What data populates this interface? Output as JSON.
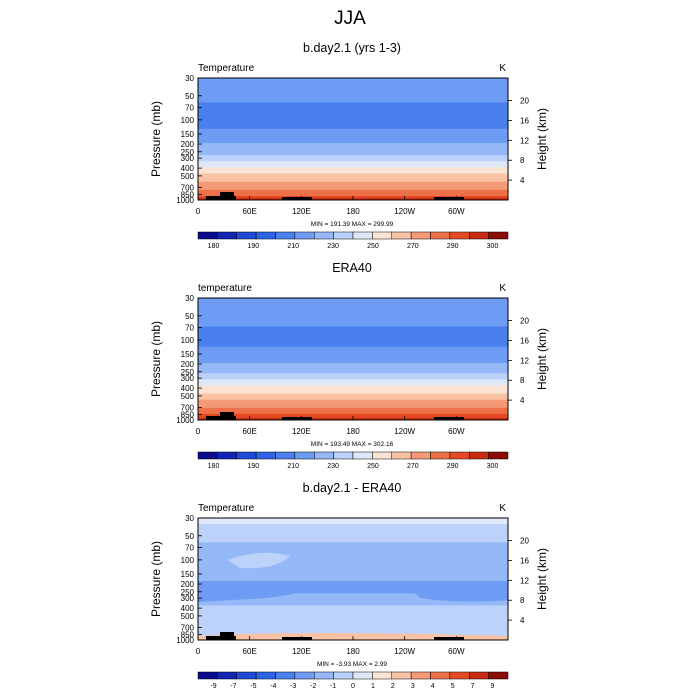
{
  "page_title": "JJA",
  "chart_data": [
    {
      "type": "heatmap",
      "title": "b.day2.1 (yrs 1-3)",
      "variable_label": "Temperature",
      "units": "K",
      "ylabel": "Pressure (mb)",
      "ylabel_right": "Height (km)",
      "y_ticks": [
        "30",
        "50",
        "70",
        "100",
        "150",
        "200",
        "250",
        "300",
        "400",
        "500",
        "700",
        "850",
        "1000"
      ],
      "y_ticks_right": [
        "20",
        "16",
        "12",
        "8",
        "4"
      ],
      "x_ticks": [
        "0",
        "60E",
        "120E",
        "180",
        "120W",
        "60W"
      ],
      "stats": "MIN = 191.39  MAX = 299.99",
      "colorbar_labels": [
        "180",
        "190",
        "210",
        "230",
        "250",
        "270",
        "290",
        "300"
      ],
      "colorbar_levels": [
        175,
        180,
        185,
        190,
        200,
        210,
        220,
        230,
        240,
        250,
        260,
        270,
        280,
        290,
        295,
        300
      ],
      "colorbar_colors": [
        "#0a0a8c",
        "#1424b4",
        "#1e4ad8",
        "#2d64e6",
        "#4a80ee",
        "#6e9cf5",
        "#94b8f8",
        "#bcd2fb",
        "#dfe8f8",
        "#fbe3d4",
        "#f9c2a4",
        "#f59a76",
        "#ee7048",
        "#e34a24",
        "#c92a10",
        "#8c0c04"
      ],
      "pressure_levels": [
        30,
        50,
        70,
        100,
        150,
        200,
        250,
        300,
        400,
        500,
        700,
        850,
        1000
      ],
      "profile": [
        210,
        212,
        208,
        204,
        214,
        220,
        226,
        236,
        252,
        264,
        278,
        288,
        298
      ],
      "max": 299.99
    },
    {
      "type": "heatmap",
      "title": "ERA40",
      "variable_label": "temperature",
      "units": "K",
      "ylabel": "Pressure (mb)",
      "ylabel_right": "Height (km)",
      "y_ticks": [
        "30",
        "50",
        "70",
        "100",
        "150",
        "200",
        "250",
        "300",
        "400",
        "500",
        "700",
        "850",
        "1000"
      ],
      "y_ticks_right": [
        "20",
        "16",
        "12",
        "8",
        "4"
      ],
      "x_ticks": [
        "0",
        "60E",
        "120E",
        "180",
        "120W",
        "60W"
      ],
      "stats": "MIN = 193.49  MAX = 302.16",
      "colorbar_labels": [
        "180",
        "190",
        "210",
        "230",
        "250",
        "270",
        "290",
        "300"
      ],
      "colorbar_levels": [
        175,
        180,
        185,
        190,
        200,
        210,
        220,
        230,
        240,
        250,
        260,
        270,
        280,
        290,
        295,
        300
      ],
      "colorbar_colors": [
        "#0a0a8c",
        "#1424b4",
        "#1e4ad8",
        "#2d64e6",
        "#4a80ee",
        "#6e9cf5",
        "#94b8f8",
        "#bcd2fb",
        "#dfe8f8",
        "#fbe3d4",
        "#f9c2a4",
        "#f59a76",
        "#ee7048",
        "#e34a24",
        "#c92a10",
        "#8c0c04"
      ],
      "pressure_levels": [
        30,
        50,
        70,
        100,
        150,
        200,
        250,
        300,
        400,
        500,
        700,
        850,
        1000
      ],
      "profile": [
        212,
        214,
        210,
        206,
        214,
        220,
        227,
        237,
        253,
        265,
        279,
        290,
        300
      ],
      "max": 302.16
    },
    {
      "type": "heatmap",
      "title": "b.day2.1 - ERA40",
      "variable_label": "Temperature",
      "units": "K",
      "ylabel": "Pressure (mb)",
      "ylabel_right": "Height (km)",
      "y_ticks": [
        "30",
        "50",
        "70",
        "100",
        "150",
        "200",
        "250",
        "300",
        "400",
        "500",
        "700",
        "850",
        "1000"
      ],
      "y_ticks_right": [
        "20",
        "16",
        "12",
        "8",
        "4"
      ],
      "x_ticks": [
        "0",
        "60E",
        "120E",
        "180",
        "120W",
        "60W"
      ],
      "stats": "MIN =  -3.93  MAX =   2.99",
      "colorbar_labels": [
        "-9",
        "-7",
        "-5",
        "-4",
        "-3",
        "-2",
        "-1",
        "0",
        "1",
        "2",
        "3",
        "4",
        "5",
        "7",
        "9"
      ],
      "colorbar_levels": [
        -10,
        -9,
        -7,
        -5,
        -4,
        -3,
        -2,
        -1,
        0,
        1,
        2,
        3,
        4,
        5,
        7,
        9
      ],
      "colorbar_colors": [
        "#0a0a8c",
        "#1424b4",
        "#1e4ad8",
        "#2d64e6",
        "#4a80ee",
        "#6e9cf5",
        "#94b8f8",
        "#bcd2fb",
        "#dfe8f8",
        "#fbe3d4",
        "#f9c2a4",
        "#f59a76",
        "#ee7048",
        "#e34a24",
        "#c92a10",
        "#8c0c04"
      ],
      "pressure_levels": [
        30,
        50,
        70,
        100,
        150,
        200,
        250,
        300,
        400,
        500,
        700,
        850,
        1000
      ],
      "profile": [
        0.3,
        -0.6,
        -1.3,
        -1.5,
        -1.2,
        -2.4,
        -2.2,
        -1.6,
        -0.8,
        -0.5,
        -0.9,
        -0.6,
        -0.4
      ],
      "max": 2.99
    }
  ]
}
